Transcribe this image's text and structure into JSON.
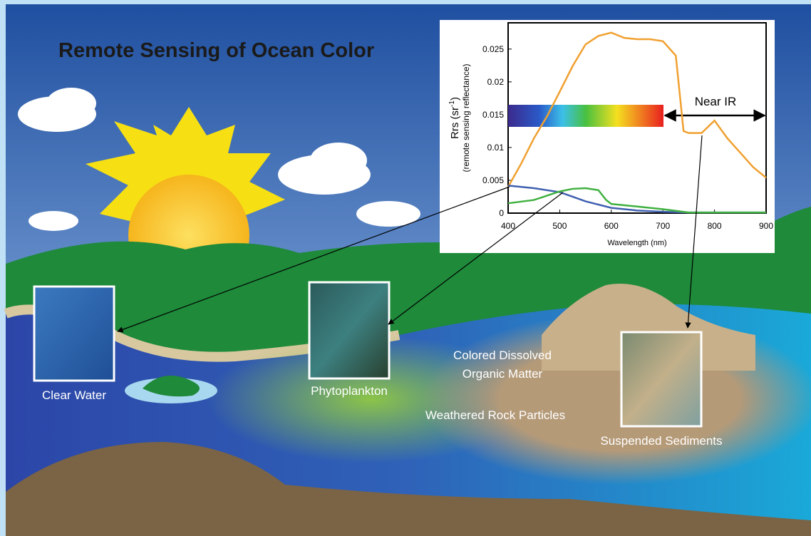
{
  "title": "Remote Sensing of Ocean Color",
  "labels": {
    "clear_water": "Clear Water",
    "phytoplankton": "Phytoplankton",
    "cdom": [
      "Colored Dissolved",
      "Organic Matter"
    ],
    "rock": "Weathered Rock Particles",
    "sediments": "Suspended Sediments"
  },
  "chart_data": {
    "type": "line",
    "xlabel": "Wavelength (nm)",
    "ylabel": {
      "main": "Rrs (sr",
      "sup": "-1",
      "close": ")"
    },
    "ylabel_sub": "(remote sensing reflectance)",
    "band_label": "Near IR",
    "xlim": [
      400,
      900
    ],
    "xticks": [
      400,
      500,
      600,
      700,
      800,
      900
    ],
    "ylim": [
      0,
      0.029
    ],
    "yticks": [
      0,
      0.005,
      0.01,
      0.015,
      0.02,
      0.025
    ],
    "series": [
      {
        "color": "#f0a030",
        "x": [
          400,
          425,
          450,
          475,
          500,
          525,
          550,
          575,
          600,
          625,
          650,
          675,
          700,
          725,
          740,
          750,
          775,
          800,
          825,
          850,
          875,
          900
        ],
        "values": [
          0.004,
          0.0075,
          0.0114,
          0.0147,
          0.0185,
          0.0224,
          0.0257,
          0.027,
          0.0275,
          0.0267,
          0.0265,
          0.0265,
          0.0262,
          0.024,
          0.0125,
          0.0122,
          0.0122,
          0.0141,
          0.0114,
          0.0092,
          0.007,
          0.0054
        ]
      },
      {
        "color": "#4060b0",
        "x": [
          400,
          450,
          500,
          525,
          550,
          600,
          650,
          700,
          750,
          800,
          900
        ],
        "values": [
          0.0042,
          0.0038,
          0.0032,
          0.0025,
          0.0018,
          0.0008,
          0.0004,
          0.0002,
          0.0001,
          0.0001,
          0.0001
        ]
      },
      {
        "color": "#40b040",
        "x": [
          400,
          450,
          500,
          525,
          550,
          575,
          590,
          600,
          650,
          700,
          750,
          900
        ],
        "values": [
          0.0015,
          0.002,
          0.0033,
          0.0037,
          0.0038,
          0.0035,
          0.002,
          0.0014,
          0.001,
          0.0006,
          0.0001,
          0.0001
        ]
      }
    ]
  }
}
